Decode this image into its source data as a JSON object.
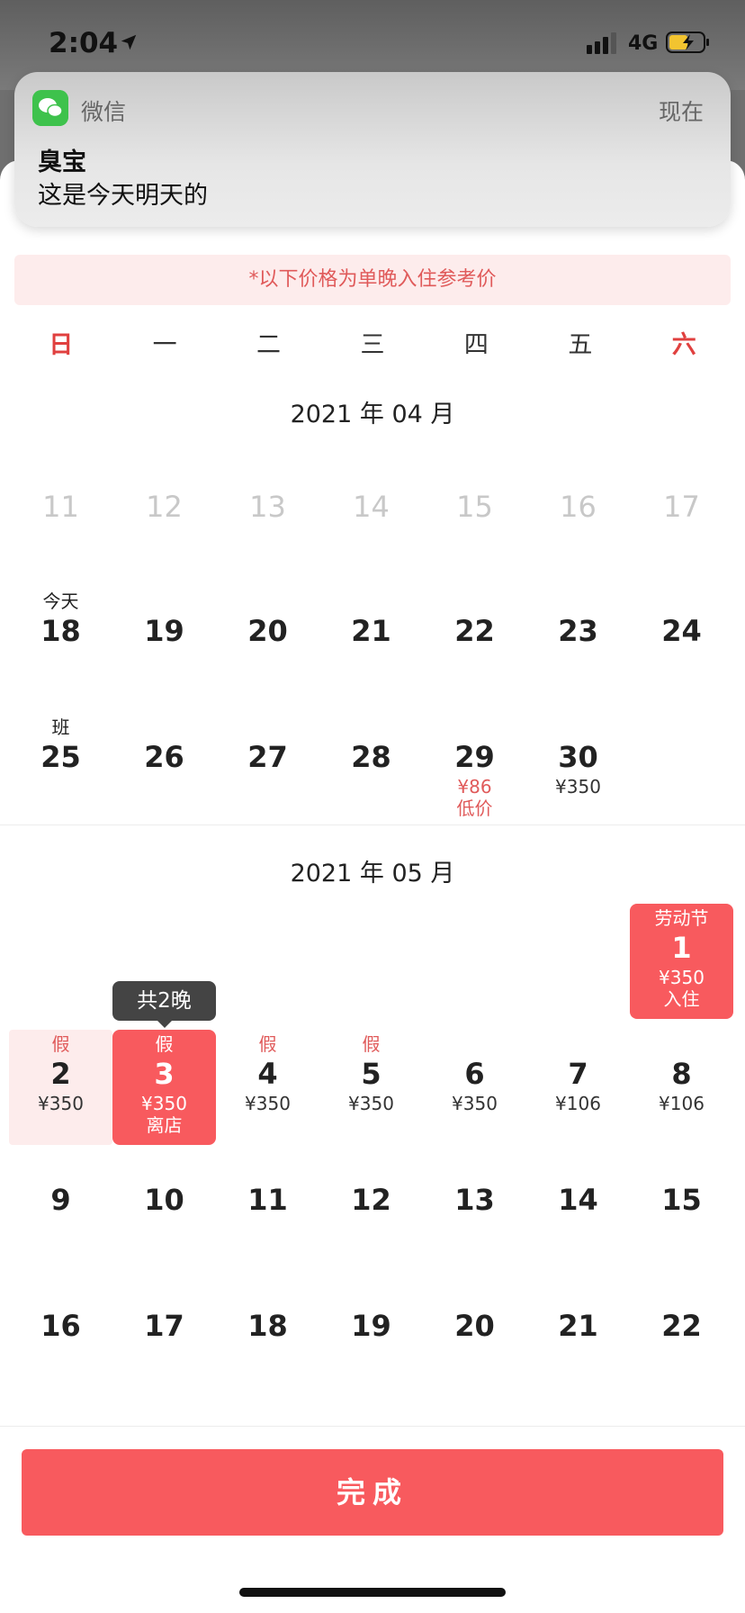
{
  "status_bar": {
    "time": "2:04",
    "network": "4G",
    "icons": [
      "location-arrow-icon",
      "signal-icon",
      "battery-charging-icon"
    ]
  },
  "notification": {
    "app": "微信",
    "time": "现在",
    "title": "臭宝",
    "body": "这是今天明天的",
    "icon": "wechat-icon"
  },
  "notice": "*以下价格为单晚入住参考价",
  "weekdays": [
    "日",
    "一",
    "二",
    "三",
    "四",
    "五",
    "六"
  ],
  "months": [
    {
      "title": "2021 年 04 月",
      "rows": [
        [
          {
            "num": "11",
            "gray": true
          },
          {
            "num": "12",
            "gray": true
          },
          {
            "num": "13",
            "gray": true
          },
          {
            "num": "14",
            "gray": true
          },
          {
            "num": "15",
            "gray": true
          },
          {
            "num": "16",
            "gray": true
          },
          {
            "num": "17",
            "gray": true
          }
        ],
        [
          {
            "top": "今天",
            "num": "18"
          },
          {
            "num": "19"
          },
          {
            "num": "20"
          },
          {
            "num": "21"
          },
          {
            "num": "22"
          },
          {
            "num": "23"
          },
          {
            "num": "24"
          }
        ],
        [
          {
            "top": "班",
            "num": "25"
          },
          {
            "num": "26"
          },
          {
            "num": "27"
          },
          {
            "num": "28"
          },
          {
            "num": "29",
            "sub": [
              "¥86",
              "低价"
            ],
            "sub_red": true
          },
          {
            "num": "30",
            "sub": [
              "¥350"
            ]
          },
          null
        ]
      ]
    },
    {
      "title": "2021 年 05 月",
      "rows": [
        [
          null,
          null,
          null,
          null,
          null,
          null,
          {
            "top": "劳动节",
            "num": "1",
            "sub": [
              "¥350",
              "入住"
            ],
            "state": "selected"
          }
        ],
        [
          {
            "top": "假",
            "top_red": true,
            "num": "2",
            "sub": [
              "¥350"
            ],
            "state": "range"
          },
          {
            "top": "假",
            "num": "3",
            "sub": [
              "¥350",
              "离店"
            ],
            "state": "selected"
          },
          {
            "top": "假",
            "top_red": true,
            "num": "4",
            "sub": [
              "¥350"
            ]
          },
          {
            "top": "假",
            "top_red": true,
            "num": "5",
            "sub": [
              "¥350"
            ]
          },
          {
            "num": "6",
            "sub": [
              "¥350"
            ]
          },
          {
            "num": "7",
            "sub": [
              "¥106"
            ]
          },
          {
            "num": "8",
            "sub": [
              "¥106"
            ]
          }
        ],
        [
          {
            "num": "9"
          },
          {
            "num": "10"
          },
          {
            "num": "11"
          },
          {
            "num": "12"
          },
          {
            "num": "13"
          },
          {
            "num": "14"
          },
          {
            "num": "15"
          }
        ],
        [
          {
            "num": "16"
          },
          {
            "num": "17"
          },
          {
            "num": "18"
          },
          {
            "num": "19"
          },
          {
            "num": "20"
          },
          {
            "num": "21"
          },
          {
            "num": "22"
          }
        ]
      ]
    }
  ],
  "tooltip": "共2晚",
  "done_button": "完成",
  "colors": {
    "accent": "#f85a5e",
    "accent_light": "#fdecec",
    "holiday_red": "#e05a5a"
  }
}
